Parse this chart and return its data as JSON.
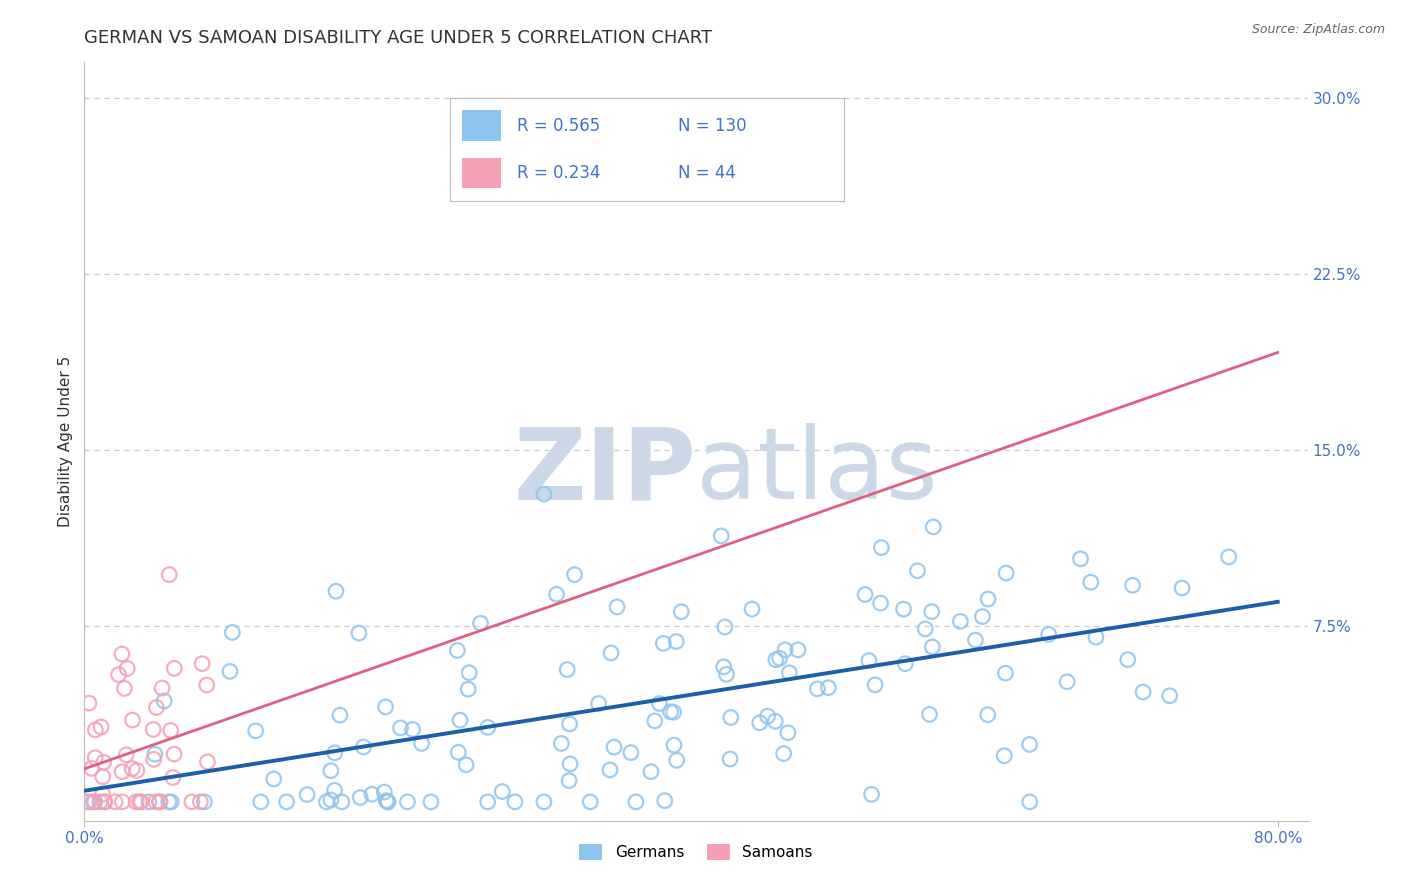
{
  "title": "GERMAN VS SAMOAN DISABILITY AGE UNDER 5 CORRELATION CHART",
  "source": "Source: ZipAtlas.com",
  "ylabel": "Disability Age Under 5",
  "xlim": [
    0.0,
    0.82
  ],
  "ylim": [
    -0.008,
    0.315
  ],
  "xticks": [
    0.0,
    0.8
  ],
  "xticklabels": [
    "0.0%",
    "80.0%"
  ],
  "ytick_positions": [
    0.075,
    0.15,
    0.225,
    0.3
  ],
  "ytick_labels": [
    "7.5%",
    "15.0%",
    "22.5%",
    "30.0%"
  ],
  "german_R": 0.565,
  "german_N": 130,
  "samoan_R": 0.234,
  "samoan_N": 44,
  "german_color": "#8dc4ee",
  "samoan_color": "#f4a0b5",
  "german_line_color": "#1a5fa8",
  "samoan_line_color": "#e06080",
  "background_color": "#ffffff",
  "grid_color": "#cccccc",
  "watermark_zip": "ZIP",
  "watermark_atlas": "atlas",
  "watermark_color": "#ccd8e8",
  "title_fontsize": 13,
  "axis_label_fontsize": 11,
  "tick_fontsize": 11,
  "tick_color": "#4472c4"
}
